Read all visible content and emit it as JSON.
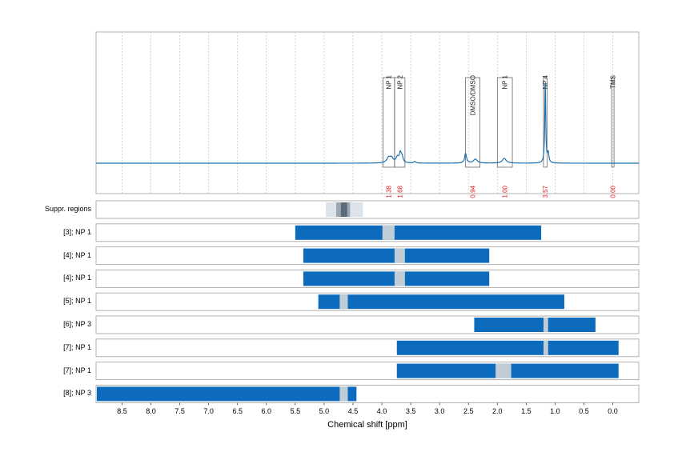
{
  "chart_data": {
    "type": "nmr-spectrum-with-regions",
    "xlabel": "Chemical shift [ppm]",
    "xlim": [
      8.95,
      -0.45
    ],
    "x_reversed": true,
    "ticks": [
      "8.5",
      "8.0",
      "7.5",
      "7.0",
      "6.5",
      "6.0",
      "5.5",
      "5.0",
      "4.5",
      "4.0",
      "3.5",
      "3.0",
      "2.5",
      "2.0",
      "1.5",
      "1.0",
      "0.5",
      "0.0"
    ],
    "tick_values": [
      8.5,
      8.0,
      7.5,
      7.0,
      6.5,
      6.0,
      5.5,
      5.0,
      4.5,
      4.0,
      3.5,
      3.0,
      2.5,
      2.0,
      1.5,
      1.0,
      0.5,
      0.0
    ],
    "grid": true,
    "spectrum": {
      "color": "#1a6fad",
      "peaks": [
        {
          "ppm": 3.88,
          "height": 0.07,
          "width": 0.04
        },
        {
          "ppm": 3.83,
          "height": 0.05,
          "width": 0.03
        },
        {
          "ppm": 3.73,
          "height": 0.07,
          "width": 0.03
        },
        {
          "ppm": 3.68,
          "height": 0.11,
          "width": 0.02
        },
        {
          "ppm": 3.65,
          "height": 0.07,
          "width": 0.02
        },
        {
          "ppm": 3.43,
          "height": 0.02,
          "width": 0.02
        },
        {
          "ppm": 2.55,
          "height": 0.12,
          "width": 0.02
        },
        {
          "ppm": 2.38,
          "height": 0.05,
          "width": 0.04
        },
        {
          "ppm": 1.88,
          "height": 0.06,
          "width": 0.04
        },
        {
          "ppm": 1.17,
          "height": 0.98,
          "width": 0.01
        },
        {
          "ppm": 1.12,
          "height": 0.12,
          "width": 0.015
        }
      ]
    },
    "peak_regions": [
      {
        "label": "NP 1",
        "from": 3.98,
        "to": 3.78,
        "integral": "1.38"
      },
      {
        "label": "NP 2",
        "from": 3.78,
        "to": 3.6,
        "integral": "1.68"
      },
      {
        "label": "DMSO/DMSO",
        "from": 2.55,
        "to": 2.3,
        "integral": "0.94"
      },
      {
        "label": "NP 1",
        "from": 2.0,
        "to": 1.74,
        "integral": "1.00"
      },
      {
        "label": "NP 4",
        "from": 1.2,
        "to": 1.14,
        "integral": "3.57"
      },
      {
        "label": "TMS",
        "from": 0.02,
        "to": -0.02,
        "integral": "0.00"
      }
    ],
    "integral_color": "#e02020",
    "suppression_row": {
      "label": "Suppr. regions",
      "outer": [
        4.97,
        4.33
      ],
      "middle": [
        4.79,
        4.55
      ],
      "inner": [
        4.71,
        4.6
      ]
    },
    "region_rows": [
      {
        "label": "[3]; NP 1",
        "from": 5.5,
        "to": 1.24,
        "gap": [
          3.99,
          3.78
        ]
      },
      {
        "label": "[4]; NP 1",
        "from": 5.36,
        "to": 2.14,
        "gap": [
          3.78,
          3.6
        ]
      },
      {
        "label": "[4]; NP 1",
        "from": 5.36,
        "to": 2.14,
        "gap": [
          3.78,
          3.6
        ]
      },
      {
        "label": "[5]; NP 1",
        "from": 5.1,
        "to": 0.84,
        "gap": [
          4.73,
          4.59
        ]
      },
      {
        "label": "[6]; NP 3",
        "from": 2.4,
        "to": 0.3,
        "gap": [
          1.2,
          1.12
        ]
      },
      {
        "label": "[7]; NP 1",
        "from": 3.74,
        "to": -0.1,
        "gap": [
          1.2,
          1.12
        ]
      },
      {
        "label": "[7]; NP 1",
        "from": 3.74,
        "to": -0.1,
        "gap": [
          2.03,
          1.76
        ]
      },
      {
        "label": "[8]; NP 3",
        "from": 8.95,
        "to": 4.44,
        "gap": [
          4.73,
          4.59
        ]
      }
    ],
    "bar_color": "#0c6bbd",
    "gap_color": "#c0ccd6"
  }
}
